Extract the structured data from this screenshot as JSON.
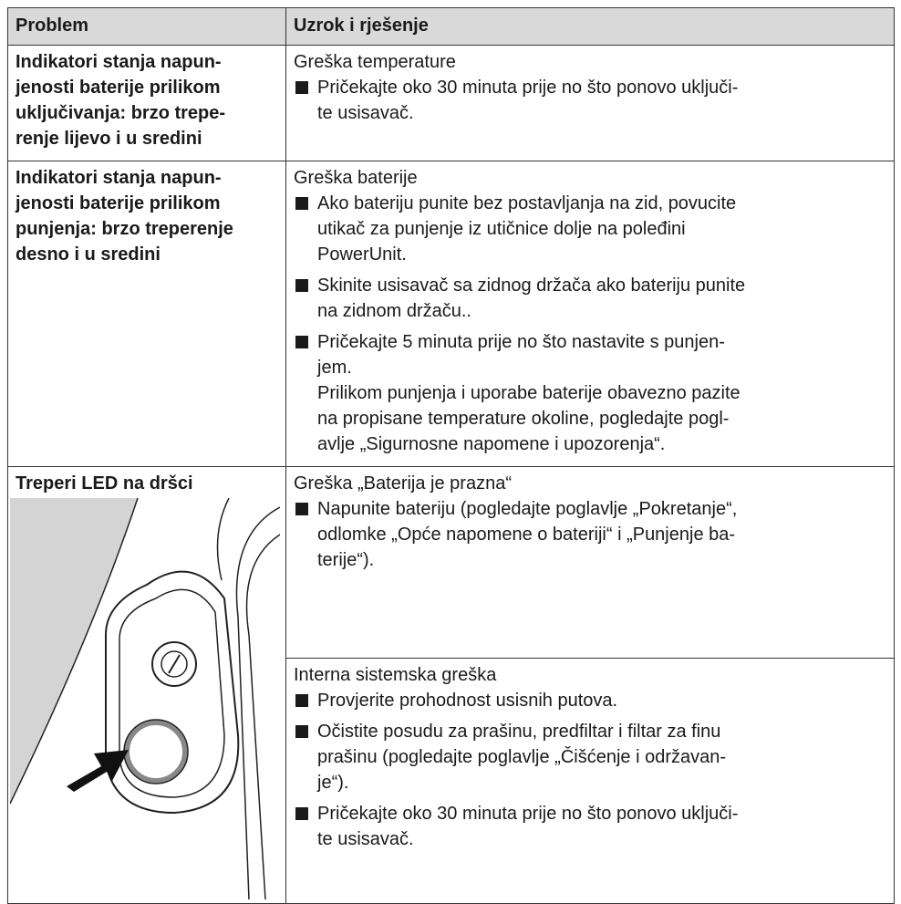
{
  "header": {
    "problem": "Problem",
    "solution": "Uzrok i rješenje"
  },
  "rows": [
    {
      "problem": [
        "Indikatori stanja napun-",
        "jenosti baterije prilikom",
        "uključivanja: brzo trepe-",
        "renje lijevo i u sredini"
      ],
      "entries": [
        {
          "cause": "Greška temperature",
          "items": [
            {
              "lines": [
                "Pričekajte oko 30 minuta prije no što ponovo uključi-",
                "te usisavač."
              ]
            }
          ]
        }
      ]
    },
    {
      "problem": [
        "Indikatori stanja napun-",
        "jenosti baterije prilikom",
        "punjenja: brzo treperenje",
        "desno i u sredini"
      ],
      "entries": [
        {
          "cause": "Greška baterije",
          "items": [
            {
              "lines": [
                "Ako bateriju punite bez postavljanja na zid, povucite",
                "utikač za punjenje iz utičnice dolje na poleđini",
                "PowerUnit."
              ]
            },
            {
              "lines": [
                "Skinite usisavač sa zidnog držača ako bateriju punite",
                "na zidnom držaču.."
              ]
            },
            {
              "lines": [
                "Pričekajte 5 minuta prije no što nastavite s punjen-",
                "jem."
              ],
              "note": [
                "Prilikom punjenja i uporabe baterije obavezno pazite",
                "na propisane temperature okoline, pogledajte pogl-",
                "avlje „Sigurnosne napomene i upozorenja“."
              ]
            }
          ]
        }
      ]
    },
    {
      "problem": [
        "Treperi LED na dršci"
      ],
      "entries": [
        {
          "cause": "Greška „Baterija je prazna“",
          "items": [
            {
              "lines": [
                "Napunite bateriju (pogledajte poglavlje „Pokretanje“,",
                "odlomke „Opće napomene o bateriji“ i „Punjenje ba-",
                "terije“)."
              ]
            }
          ]
        },
        {
          "cause": "Interna sistemska greška",
          "items": [
            {
              "lines": [
                "Provjerite prohodnost usisnih putova."
              ]
            },
            {
              "lines": [
                "Očistite posudu za prašinu, predfiltar i filtar za finu",
                "prašinu (pogledajte poglavlje „Čišćenje i održavan-",
                "je“)."
              ]
            },
            {
              "lines": [
                "Pričekajte oko 30 minuta prije no što ponovo uključi-",
                "te usisavač."
              ]
            }
          ]
        }
      ]
    }
  ]
}
